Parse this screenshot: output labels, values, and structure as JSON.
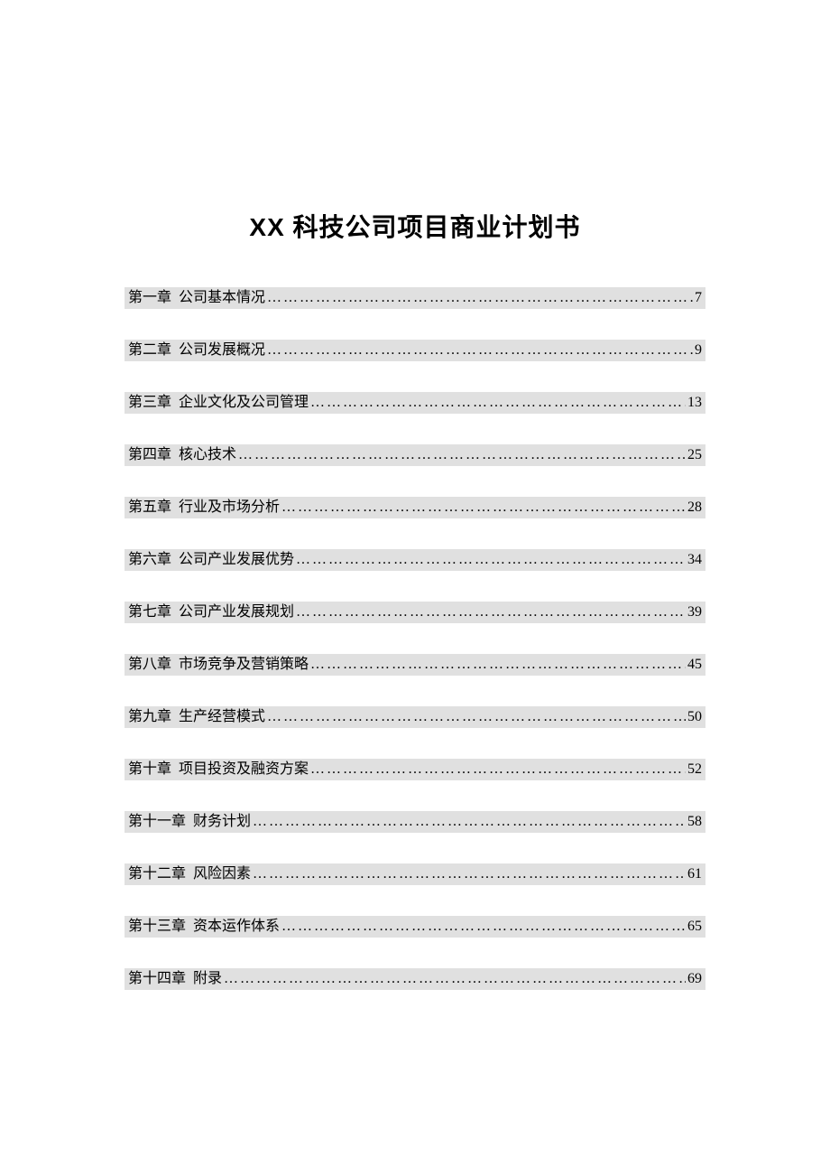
{
  "document": {
    "title": "XX 科技公司项目商业计划书",
    "title_fontsize": 28,
    "title_fontweight": "bold"
  },
  "colors": {
    "page_background": "#ffffff",
    "row_background": "#e0e0e0",
    "text_color": "#000000"
  },
  "typography": {
    "body_fontsize": 16,
    "title_fontsize": 28
  },
  "toc": {
    "items": [
      {
        "chapter": "第一章",
        "title": "公司基本情况",
        "page": "7"
      },
      {
        "chapter": "第二章",
        "title": "公司发展概况",
        "page": "9"
      },
      {
        "chapter": "第三章",
        "title": "企业文化及公司管理",
        "page": "13"
      },
      {
        "chapter": "第四章",
        "title": "核心技术",
        "page": "25"
      },
      {
        "chapter": "第五章",
        "title": "行业及市场分析",
        "page": "28"
      },
      {
        "chapter": "第六章",
        "title": "公司产业发展优势",
        "page": "34"
      },
      {
        "chapter": "第七章",
        "title": "公司产业发展规划",
        "page": "39"
      },
      {
        "chapter": "第八章",
        "title": "市场竞争及营销策略",
        "page": "45"
      },
      {
        "chapter": "第九章",
        "title": "生产经营模式",
        "page": "50"
      },
      {
        "chapter": "第十章",
        "title": "项目投资及融资方案",
        "page": "52"
      },
      {
        "chapter": "第十一章",
        "title": "财务计划",
        "page": "58"
      },
      {
        "chapter": "第十二章",
        "title": "风险因素",
        "page": "61"
      },
      {
        "chapter": "第十三章",
        "title": "资本运作体系",
        "page": "65"
      },
      {
        "chapter": "第十四章",
        "title": "附录",
        "page": "69"
      }
    ]
  }
}
